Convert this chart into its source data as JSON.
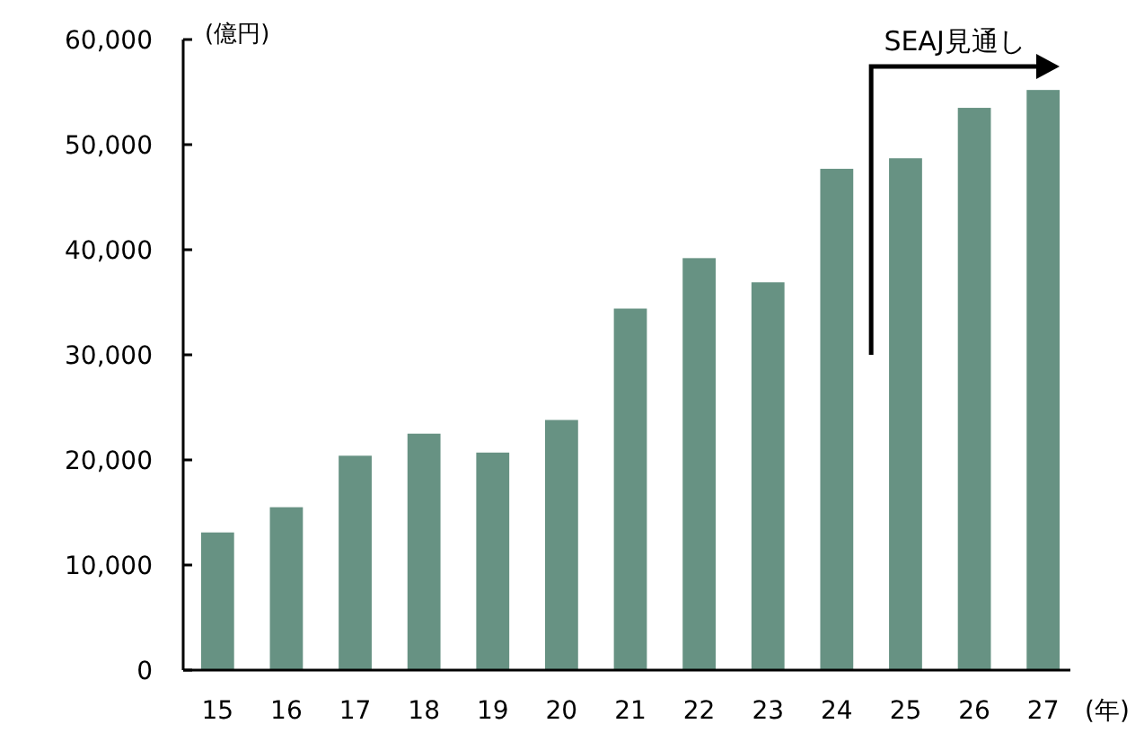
{
  "chart_data": {
    "type": "bar",
    "ylabel": "(億円)",
    "xlabel": "(年)",
    "categories": [
      "15",
      "16",
      "17",
      "18",
      "19",
      "20",
      "21",
      "22",
      "23",
      "24",
      "25",
      "26",
      "27"
    ],
    "values": [
      13100,
      15500,
      20400,
      22500,
      20700,
      23800,
      34400,
      39200,
      36900,
      47700,
      48700,
      53500,
      55200
    ],
    "color": "#679283",
    "ylim": [
      0,
      60000
    ],
    "yticks": [
      {
        "value": 0,
        "label": "0"
      },
      {
        "value": 10000,
        "label": "10,000"
      },
      {
        "value": 20000,
        "label": "20,000"
      },
      {
        "value": 30000,
        "label": "30,000"
      },
      {
        "value": 40000,
        "label": "40,000"
      },
      {
        "value": 50000,
        "label": "50,000"
      },
      {
        "value": 60000,
        "label": "60,000"
      }
    ],
    "annotations": [
      "SEAJ見通し"
    ]
  }
}
